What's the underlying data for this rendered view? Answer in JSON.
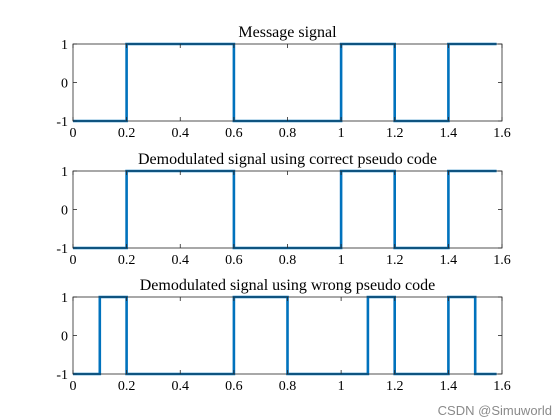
{
  "watermark": "CSDN @Simuworld",
  "chart_data": [
    {
      "type": "line",
      "step": true,
      "title": "Message signal",
      "xlabel": "",
      "ylabel": "",
      "xlim": [
        0,
        1.6
      ],
      "ylim": [
        -1,
        1
      ],
      "xticks": [
        "0",
        "0.2",
        "0.4",
        "0.6",
        "0.8",
        "1",
        "1.2",
        "1.4",
        "1.6"
      ],
      "yticks": [
        "-1",
        "0",
        "1"
      ],
      "grid": false,
      "color": "#0072BD",
      "series": [
        {
          "x": [
            0,
            0.2,
            0.2,
            0.6,
            0.6,
            1.0,
            1.0,
            1.2,
            1.2,
            1.4,
            1.4,
            1.58
          ],
          "y": [
            -1,
            -1,
            1,
            1,
            -1,
            -1,
            1,
            1,
            -1,
            -1,
            1,
            1
          ]
        }
      ]
    },
    {
      "type": "line",
      "step": true,
      "title": "Demodulated signal using correct pseudo code",
      "xlabel": "",
      "ylabel": "",
      "xlim": [
        0,
        1.6
      ],
      "ylim": [
        -1,
        1
      ],
      "xticks": [
        "0",
        "0.2",
        "0.4",
        "0.6",
        "0.8",
        "1",
        "1.2",
        "1.4",
        "1.6"
      ],
      "yticks": [
        "-1",
        "0",
        "1"
      ],
      "grid": false,
      "color": "#0072BD",
      "series": [
        {
          "x": [
            0,
            0.2,
            0.2,
            0.6,
            0.6,
            1.0,
            1.0,
            1.2,
            1.2,
            1.4,
            1.4,
            1.58
          ],
          "y": [
            -1,
            -1,
            1,
            1,
            -1,
            -1,
            1,
            1,
            -1,
            -1,
            1,
            1
          ]
        }
      ]
    },
    {
      "type": "line",
      "step": true,
      "title": "Demodulated signal using wrong pseudo code",
      "xlabel": "",
      "ylabel": "",
      "xlim": [
        0,
        1.6
      ],
      "ylim": [
        -1,
        1
      ],
      "xticks": [
        "0",
        "0.2",
        "0.4",
        "0.6",
        "0.8",
        "1",
        "1.2",
        "1.4",
        "1.6"
      ],
      "yticks": [
        "-1",
        "0",
        "1"
      ],
      "grid": false,
      "color": "#0072BD",
      "series": [
        {
          "x": [
            0,
            0.1,
            0.1,
            0.2,
            0.2,
            0.6,
            0.6,
            0.8,
            0.8,
            1.1,
            1.1,
            1.2,
            1.2,
            1.4,
            1.4,
            1.5,
            1.5,
            1.58
          ],
          "y": [
            -1,
            -1,
            1,
            1,
            -1,
            -1,
            1,
            1,
            -1,
            -1,
            1,
            1,
            -1,
            -1,
            1,
            1,
            -1,
            -1
          ]
        }
      ]
    }
  ]
}
